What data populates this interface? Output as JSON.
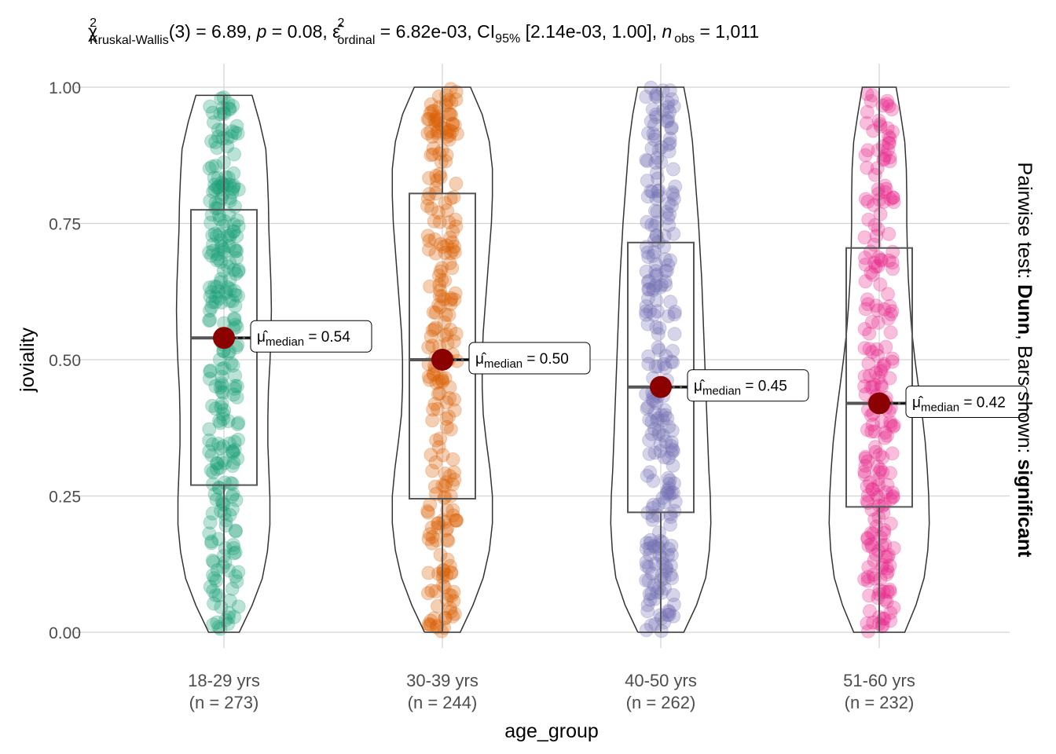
{
  "chart_data": {
    "type": "violin-box-jitter",
    "title": {
      "chi_symbol": "χ",
      "chi_sup": "2",
      "chi_sub": "Kruskal-Wallis",
      "chi_stat": "(3) = 6.89, ",
      "p_symbol": "p",
      "p_stat": " = 0.08, ",
      "eps_symbol": "ε̂",
      "eps_sup": "2",
      "eps_sub": "ordinal",
      "eps_stat": " = 6.82e-03, CI",
      "ci_sub": "95%",
      "ci_stat": " [2.14e-03, 1.00], ",
      "n_symbol": "n",
      "n_sub": "obs",
      "n_stat": " = 1,011"
    },
    "xlabel": "age_group",
    "ylabel": "joviality",
    "side_label": {
      "prefix": "Pairwise test: ",
      "test": "Dunn",
      "middle": ", Bars shown: ",
      "shown": "significant"
    },
    "ylim": [
      0,
      1
    ],
    "yticks": [
      {
        "value": 0.0,
        "label": "0.00"
      },
      {
        "value": 0.25,
        "label": "0.25"
      },
      {
        "value": 0.5,
        "label": "0.50"
      },
      {
        "value": 0.75,
        "label": "0.75"
      },
      {
        "value": 1.0,
        "label": "1.00"
      }
    ],
    "grid": true,
    "median_marker_color": "#8b0000",
    "groups": [
      {
        "name": "18-29 yrs",
        "n_label": "(n = 273)",
        "n": 273,
        "color": "#1b9e77",
        "min": 0.0,
        "q1": 0.27,
        "median": 0.54,
        "q3": 0.775,
        "max": 0.985,
        "median_label": {
          "mu": "μ̂",
          "sub": "median",
          "value": " = 0.54"
        },
        "violin_widths": [
          0.3,
          0.55,
          0.75,
          0.85,
          0.9,
          0.9,
          0.88,
          0.86,
          0.86,
          0.87,
          0.9,
          0.92,
          0.93,
          0.92,
          0.9,
          0.88,
          0.87,
          0.85,
          0.82,
          0.7,
          0.55
        ]
      },
      {
        "name": "30-39 yrs",
        "n_label": "(n = 244)",
        "n": 244,
        "color": "#d95f02",
        "min": 0.0,
        "q1": 0.245,
        "median": 0.5,
        "q3": 0.805,
        "max": 1.0,
        "median_label": {
          "mu": "μ̂",
          "sub": "median",
          "value": " = 0.50"
        },
        "violin_widths": [
          0.35,
          0.6,
          0.8,
          0.92,
          0.98,
          0.98,
          0.93,
          0.86,
          0.8,
          0.78,
          0.78,
          0.8,
          0.84,
          0.88,
          0.92,
          0.96,
          0.98,
          0.98,
          0.92,
          0.78,
          0.55
        ]
      },
      {
        "name": "40-50 yrs",
        "n_label": "(n = 262)",
        "n": 262,
        "color": "#7570b3",
        "min": 0.0,
        "q1": 0.22,
        "median": 0.45,
        "q3": 0.715,
        "max": 1.0,
        "median_label": {
          "mu": "μ̂",
          "sub": "median",
          "value": " = 0.45"
        },
        "violin_widths": [
          0.45,
          0.7,
          0.88,
          0.95,
          0.98,
          0.97,
          0.94,
          0.92,
          0.9,
          0.88,
          0.86,
          0.84,
          0.82,
          0.8,
          0.77,
          0.74,
          0.7,
          0.66,
          0.62,
          0.55,
          0.45
        ]
      },
      {
        "name": "51-60 yrs",
        "n_label": "(n = 232)",
        "n": 232,
        "color": "#e7298a",
        "min": 0.0,
        "q1": 0.23,
        "median": 0.42,
        "q3": 0.705,
        "max": 1.0,
        "median_label": {
          "mu": "μ̂",
          "sub": "median",
          "value": " = 0.42"
        },
        "violin_widths": [
          0.5,
          0.72,
          0.88,
          0.95,
          0.98,
          0.97,
          0.94,
          0.9,
          0.84,
          0.77,
          0.7,
          0.64,
          0.6,
          0.57,
          0.55,
          0.54,
          0.54,
          0.53,
          0.5,
          0.42,
          0.33
        ]
      }
    ]
  }
}
